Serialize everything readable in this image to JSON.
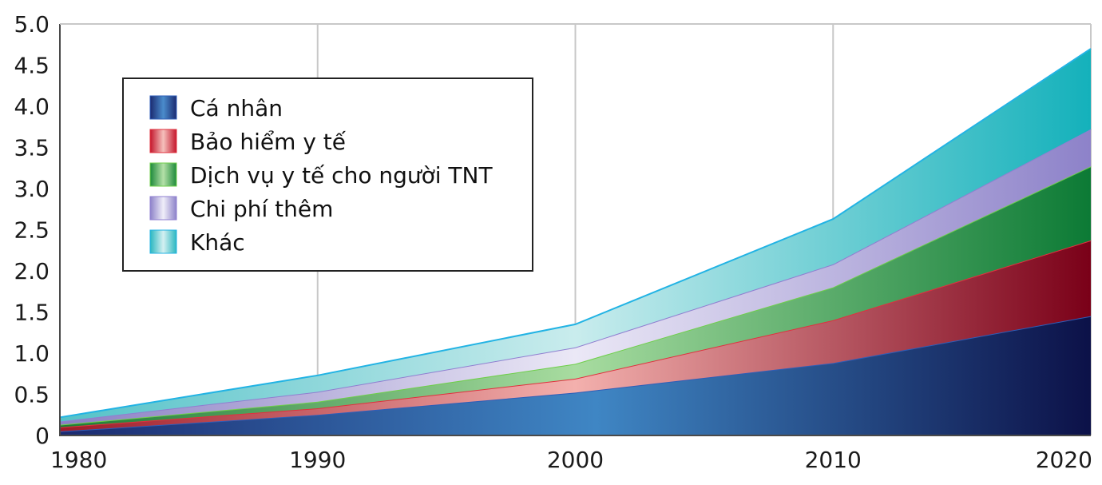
{
  "chart_data": {
    "type": "area",
    "stacked": true,
    "title": "",
    "xlabel": "",
    "ylabel": "",
    "x": [
      1980,
      1990,
      2000,
      2010,
      2020
    ],
    "xlim": [
      1980,
      2020
    ],
    "ylim": [
      0,
      5.0
    ],
    "x_ticks": [
      "1980",
      "1990",
      "2000",
      "2010",
      "2020"
    ],
    "y_ticks": [
      "0",
      "0.5",
      "1.0",
      "1.5",
      "2.0",
      "2.5",
      "3.0",
      "3.5",
      "4.0",
      "4.5",
      "5.0"
    ],
    "grid": "vertical",
    "legend_position": "top-left",
    "series": [
      {
        "name": "Cá nhân",
        "values": [
          0.05,
          0.25,
          0.52,
          0.88,
          1.45
        ],
        "color": "#1e3a8a"
      },
      {
        "name": "Bảo hiểm y tế",
        "values": [
          0.05,
          0.08,
          0.17,
          0.52,
          0.92
        ],
        "color": "#b0182b"
      },
      {
        "name": "Dịch vụ y tế cho người TNT",
        "values": [
          0.03,
          0.08,
          0.18,
          0.4,
          0.9
        ],
        "color": "#1e8a3a"
      },
      {
        "name": "Chi phí thêm",
        "values": [
          0.04,
          0.12,
          0.2,
          0.28,
          0.45
        ],
        "color": "#9b8fd0"
      },
      {
        "name": "Khác",
        "values": [
          0.05,
          0.2,
          0.28,
          0.55,
          0.98
        ],
        "color": "#2ab7c0"
      }
    ]
  }
}
